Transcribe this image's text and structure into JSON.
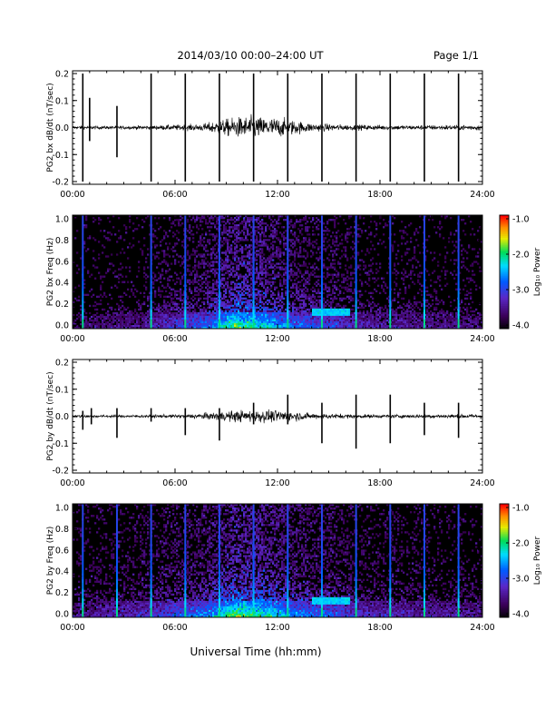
{
  "header": {
    "title": "2014/03/10   00:00–24:00 UT",
    "page": "Page 1/1"
  },
  "footer": {
    "xlabel": "Universal Time (hh:mm)"
  },
  "chart_data": [
    {
      "type": "line",
      "ylabel": "PG2 bx dB/dt (nT/sec)",
      "xlim": [
        0,
        24
      ],
      "ylim": [
        -0.2,
        0.2
      ],
      "x_ticks": [
        "00:00",
        "06:00",
        "12:00",
        "18:00",
        "24:00"
      ],
      "y_ticks": [
        "0.2",
        "0.1",
        "0.0",
        "-0.1",
        "-0.2"
      ],
      "series": [
        {
          "description": "dB/dt time series; near zero baseline with noise envelope and calibration spikes",
          "baseline": 0.0,
          "noise_envelope": [
            {
              "t": 0,
              "a": 0.006
            },
            {
              "t": 3,
              "a": 0.006
            },
            {
              "t": 5,
              "a": 0.008
            },
            {
              "t": 7.5,
              "a": 0.012
            },
            {
              "t": 8.6,
              "a": 0.025
            },
            {
              "t": 9.5,
              "a": 0.035
            },
            {
              "t": 10.5,
              "a": 0.04
            },
            {
              "t": 11.3,
              "a": 0.035
            },
            {
              "t": 12,
              "a": 0.035
            },
            {
              "t": 13,
              "a": 0.025
            },
            {
              "t": 14,
              "a": 0.015
            },
            {
              "t": 16,
              "a": 0.01
            },
            {
              "t": 20,
              "a": 0.008
            },
            {
              "t": 24,
              "a": 0.01
            }
          ],
          "spikes": [
            {
              "t": 0.6,
              "up": 0.2,
              "down": -0.2
            },
            {
              "t": 1.0,
              "up": 0.11,
              "down": -0.05
            },
            {
              "t": 2.6,
              "up": 0.08,
              "down": -0.11
            },
            {
              "t": 4.6,
              "up": 0.2,
              "down": -0.2
            },
            {
              "t": 6.6,
              "up": 0.2,
              "down": -0.2
            },
            {
              "t": 8.6,
              "up": 0.2,
              "down": -0.2
            },
            {
              "t": 10.6,
              "up": 0.2,
              "down": -0.2
            },
            {
              "t": 12.6,
              "up": 0.2,
              "down": -0.2
            },
            {
              "t": 14.6,
              "up": 0.2,
              "down": -0.2
            },
            {
              "t": 16.6,
              "up": 0.2,
              "down": -0.2
            },
            {
              "t": 18.6,
              "up": 0.2,
              "down": -0.2
            },
            {
              "t": 20.6,
              "up": 0.2,
              "down": -0.2
            },
            {
              "t": 22.6,
              "up": 0.2,
              "down": -0.2
            }
          ]
        }
      ]
    },
    {
      "type": "heatmap",
      "ylabel": "PG2 bx Freq (Hz)",
      "xlim": [
        0,
        24
      ],
      "ylim": [
        0,
        1.0
      ],
      "x_ticks": [
        "00:00",
        "06:00",
        "12:00",
        "18:00",
        "24:00"
      ],
      "y_ticks": [
        "1.0",
        "0.8",
        "0.6",
        "0.4",
        "0.2",
        "0.0"
      ],
      "colorbar": {
        "label": "Log₁₀ Power",
        "range": [
          -4.0,
          -1.0
        ],
        "ticks": [
          "-1.0",
          "-2.0",
          "-3.0",
          "-4.0"
        ]
      },
      "description": "Spectrogram; broadband power concentrated below 0.3 Hz between 08:00 and 15:00, vertical lines at spike times",
      "spike_times": [
        0.6,
        4.6,
        6.6,
        8.6,
        10.6,
        12.6,
        14.6,
        16.6,
        18.6,
        20.6,
        22.6
      ],
      "activity": [
        {
          "t": 0,
          "level": 0.15
        },
        {
          "t": 4,
          "level": 0.25
        },
        {
          "t": 8,
          "level": 0.55
        },
        {
          "t": 9.5,
          "level": 0.9
        },
        {
          "t": 11,
          "level": 0.8
        },
        {
          "t": 13,
          "level": 0.55
        },
        {
          "t": 15,
          "level": 0.45
        },
        {
          "t": 17,
          "level": 0.3
        },
        {
          "t": 24,
          "level": 0.2
        }
      ],
      "band_feature": {
        "t_start": 14.0,
        "t_end": 16.2,
        "freq": 0.15
      }
    },
    {
      "type": "line",
      "ylabel": "PG2 by dB/dt (nT/sec)",
      "xlim": [
        0,
        24
      ],
      "ylim": [
        -0.2,
        0.2
      ],
      "x_ticks": [
        "00:00",
        "06:00",
        "12:00",
        "18:00",
        "24:00"
      ],
      "y_ticks": [
        "0.2",
        "0.1",
        "0.0",
        "-0.1",
        "-0.2"
      ],
      "series": [
        {
          "description": "dB/dt time series; near zero baseline with noise envelope and calibration spikes",
          "baseline": 0.0,
          "noise_envelope": [
            {
              "t": 0,
              "a": 0.005
            },
            {
              "t": 3,
              "a": 0.005
            },
            {
              "t": 6,
              "a": 0.006
            },
            {
              "t": 8,
              "a": 0.012
            },
            {
              "t": 9.5,
              "a": 0.02
            },
            {
              "t": 11,
              "a": 0.022
            },
            {
              "t": 12.5,
              "a": 0.02
            },
            {
              "t": 14,
              "a": 0.01
            },
            {
              "t": 18,
              "a": 0.006
            },
            {
              "t": 24,
              "a": 0.008
            }
          ],
          "spikes": [
            {
              "t": 0.6,
              "up": 0.02,
              "down": -0.05
            },
            {
              "t": 1.1,
              "up": 0.03,
              "down": -0.03
            },
            {
              "t": 2.6,
              "up": 0.03,
              "down": -0.08
            },
            {
              "t": 4.6,
              "up": 0.03,
              "down": -0.02
            },
            {
              "t": 6.6,
              "up": 0.03,
              "down": -0.07
            },
            {
              "t": 8.6,
              "up": 0.03,
              "down": -0.09
            },
            {
              "t": 10.6,
              "up": 0.05,
              "down": -0.03
            },
            {
              "t": 12.6,
              "up": 0.08,
              "down": -0.03
            },
            {
              "t": 14.6,
              "up": 0.05,
              "down": -0.1
            },
            {
              "t": 16.6,
              "up": 0.08,
              "down": -0.12
            },
            {
              "t": 18.6,
              "up": 0.08,
              "down": -0.1
            },
            {
              "t": 20.6,
              "up": 0.05,
              "down": -0.07
            },
            {
              "t": 22.6,
              "up": 0.05,
              "down": -0.08
            }
          ]
        }
      ]
    },
    {
      "type": "heatmap",
      "ylabel": "PG2 by Freq (Hz)",
      "xlim": [
        0,
        24
      ],
      "ylim": [
        0,
        1.0
      ],
      "x_ticks": [
        "00:00",
        "06:00",
        "12:00",
        "18:00",
        "24:00"
      ],
      "y_ticks": [
        "1.0",
        "0.8",
        "0.6",
        "0.4",
        "0.2",
        "0.0"
      ],
      "colorbar": {
        "label": "Log₁₀ Power",
        "range": [
          -4.0,
          -1.0
        ],
        "ticks": [
          "-1.0",
          "-2.0",
          "-3.0",
          "-4.0"
        ]
      },
      "description": "Spectrogram; broadband power concentrated below 0.3 Hz between 08:00 and 15:00, faint vertical lines at spike times",
      "spike_times": [
        0.6,
        2.6,
        4.6,
        6.6,
        8.6,
        10.6,
        12.6,
        14.6,
        16.6,
        18.6,
        20.6,
        22.6
      ],
      "activity": [
        {
          "t": 0,
          "level": 0.25
        },
        {
          "t": 4,
          "level": 0.35
        },
        {
          "t": 8,
          "level": 0.6
        },
        {
          "t": 9.5,
          "level": 0.95
        },
        {
          "t": 11,
          "level": 0.85
        },
        {
          "t": 13,
          "level": 0.6
        },
        {
          "t": 15,
          "level": 0.5
        },
        {
          "t": 17,
          "level": 0.35
        },
        {
          "t": 24,
          "level": 0.25
        }
      ],
      "band_feature": {
        "t_start": 14.0,
        "t_end": 16.2,
        "freq": 0.15
      }
    }
  ]
}
